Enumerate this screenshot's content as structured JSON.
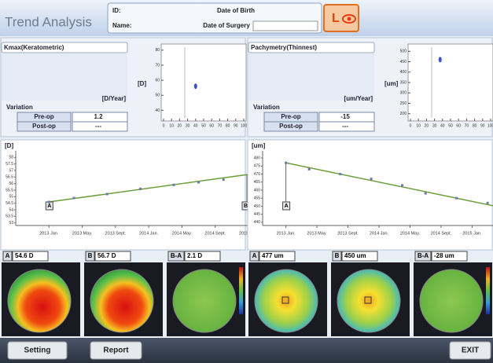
{
  "header": {
    "title": "Trend Analysis",
    "id_label": "ID:",
    "name_label": "Name:",
    "dob_label": "Date of Birth",
    "dos_label": "Date of Surgery",
    "eye": "L"
  },
  "panels": [
    {
      "dropdown": "Kmax(Keratometric)",
      "rate_unit": "[D/Year]",
      "variation": "Variation",
      "rows": [
        [
          "Pre-op",
          "1.2"
        ],
        [
          "Post-op",
          "---"
        ]
      ],
      "scatter": {
        "type": "scatter",
        "ylabel": "[D]",
        "x": [
          40
        ],
        "values": [
          56
        ],
        "color": "#3a4fd0",
        "xlim": [
          0,
          100
        ],
        "ylim": [
          35,
          82
        ],
        "yticks": [
          80,
          70,
          60,
          50,
          40
        ],
        "xticks": [
          0,
          10,
          20,
          30,
          40,
          50,
          60,
          70,
          80,
          90,
          100
        ]
      },
      "trend": {
        "type": "line",
        "ylabel": "[D]",
        "x": [
          "2013-01",
          "2013-04",
          "2013-08",
          "2013-12",
          "2014-04",
          "2014-07",
          "2014-10",
          "2015-01"
        ],
        "values": [
          54.6,
          54.9,
          55.2,
          55.6,
          55.9,
          56.1,
          56.3,
          56.5
        ],
        "color": "#6c9e3a",
        "fit": [
          54.6,
          56.7
        ],
        "xlim": [
          "2012-09",
          "2015-01"
        ],
        "ylim": [
          52.8,
          58.2
        ],
        "yticks": [
          58,
          57.5,
          57,
          56.5,
          56,
          55.5,
          55,
          54.5,
          54,
          53.5,
          53
        ],
        "xticks": [
          {
            "value": "2013-01",
            "label": "2013 Jan."
          },
          {
            "value": "2013-05",
            "label": "2013 May."
          },
          {
            "value": "2013-09",
            "label": "2013 Sept."
          },
          {
            "value": "2014-01",
            "label": "2014 Jan."
          },
          {
            "value": "2014-05",
            "label": "2014 May."
          },
          {
            "value": "2014-09",
            "label": "2014 Sept."
          },
          {
            "value": "2015-01",
            "label": "2015 Jan."
          }
        ],
        "a": "A",
        "b": "B"
      },
      "maps": [
        {
          "tag": "A",
          "value": "54.6 D"
        },
        {
          "tag": "B",
          "value": "56.7 D"
        },
        {
          "tag": "B-A",
          "value": "2.1 D"
        }
      ]
    },
    {
      "dropdown": "Pachymetry(Thinnest)",
      "rate_unit": "[um/Year]",
      "variation": "Variation",
      "rows": [
        [
          "Pre-op",
          "-15"
        ],
        [
          "Post-op",
          "---"
        ]
      ],
      "scatter": {
        "type": "scatter",
        "ylabel": "[um]",
        "x": [
          37
        ],
        "values": [
          460
        ],
        "color": "#3a4fd0",
        "xlim": [
          0,
          100
        ],
        "ylim": [
          180,
          520
        ],
        "yticks": [
          500,
          450,
          400,
          350,
          300,
          250,
          200
        ],
        "xticks": [
          0,
          10,
          20,
          30,
          40,
          50,
          60,
          70,
          80,
          90,
          100
        ]
      },
      "trend": {
        "type": "line",
        "ylabel": "[um]",
        "x": [
          "2013-01",
          "2013-04",
          "2013-08",
          "2013-12",
          "2014-04",
          "2014-07",
          "2014-11",
          "2015-03"
        ],
        "values": [
          477,
          473,
          470,
          467,
          463,
          458,
          455,
          452
        ],
        "color": "#6c9e3a",
        "fit": [
          477,
          450
        ],
        "xlim": [
          "2012-10",
          "2015-04"
        ],
        "ylim": [
          438,
          482
        ],
        "yticks": [
          480,
          475,
          470,
          465,
          460,
          455,
          450,
          445,
          440
        ],
        "xticks": [
          {
            "value": "2013-01",
            "label": "2013 Jan."
          },
          {
            "value": "2013-05",
            "label": "2013 May."
          },
          {
            "value": "2013-09",
            "label": "2013 Sept."
          },
          {
            "value": "2014-01",
            "label": "2014 Jan."
          },
          {
            "value": "2014-05",
            "label": "2014 May."
          },
          {
            "value": "2014-09",
            "label": "2014 Sept."
          },
          {
            "value": "2015-01",
            "label": "2015 Jan."
          }
        ],
        "a": "A"
      },
      "maps": [
        {
          "tag": "A",
          "value": "477 um"
        },
        {
          "tag": "B",
          "value": "450 um"
        },
        {
          "tag": "B-A",
          "value": "-28 um"
        }
      ]
    }
  ],
  "buttons": [
    "Setting",
    "Report",
    "EXIT"
  ]
}
